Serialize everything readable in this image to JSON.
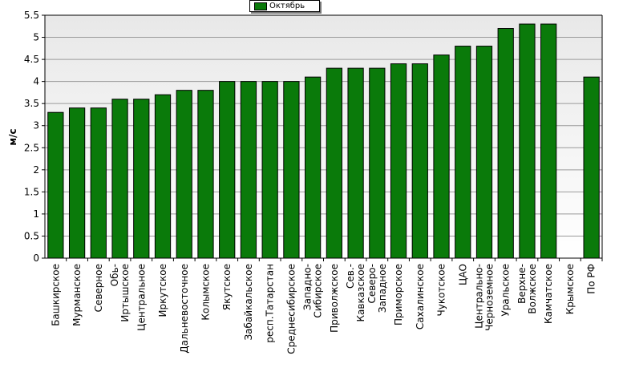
{
  "chart_data": {
    "type": "bar",
    "ylabel": "м/с",
    "ylim": [
      0,
      5.5
    ],
    "yticks": [
      "0",
      "0.5",
      "1",
      "1.5",
      "2",
      "2.5",
      "3",
      "3.5",
      "4",
      "4.5",
      "5",
      "5.5"
    ],
    "series": [
      {
        "name": "Октябрь",
        "color": "#0a7a0a"
      }
    ],
    "categories": [
      "Башкирское",
      "Мурманское",
      "Северное",
      "Обь-\nИртышское",
      "Центральное",
      "Иркутское",
      "Дальневосточное",
      "Колымское",
      "Якутское",
      "Забайкальское",
      "респ.Татарстан",
      "Среднесибирское",
      "Западно-\nСибирское",
      "Приволжское",
      "Сев.-\nКавказское",
      "Северо-\nЗападное",
      "Приморское",
      "Сахалинское",
      "Чукотское",
      "ЦАО",
      "Центрально-\nЧерноземное",
      "Уральское",
      "Верхне-\nВолжское",
      "Камчатское",
      "Крымское",
      "По РФ"
    ],
    "values": [
      3.3,
      3.4,
      3.4,
      3.6,
      3.6,
      3.7,
      3.8,
      3.8,
      4.0,
      4.0,
      4.0,
      4.0,
      4.1,
      4.3,
      4.3,
      4.3,
      4.4,
      4.4,
      4.6,
      4.8,
      4.8,
      5.2,
      5.3,
      5.3,
      null,
      4.1
    ],
    "grid": true,
    "legend_position": "top-center"
  }
}
